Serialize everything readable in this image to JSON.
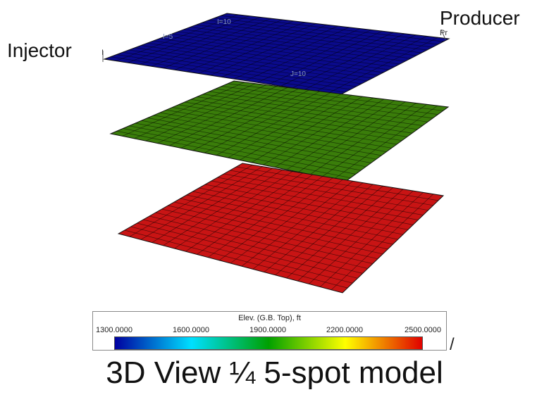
{
  "caption": "3D View ¼ 5-spot model",
  "wells": {
    "injector_label": "Injector",
    "producer_label": "Producer",
    "injector_tag": "I",
    "producer_tag": "Pr"
  },
  "grid_labels": [
    "I=10",
    "I=5",
    "J=10"
  ],
  "grid": {
    "cells_i": 20,
    "cells_j": 20
  },
  "layers": [
    {
      "name": "top",
      "color": "#0a0a8c"
    },
    {
      "name": "middle",
      "color": "#3a7d0a"
    },
    {
      "name": "bottom",
      "color": "#c81414"
    }
  ],
  "legend": {
    "title": "Elev. (G.B. Top), ft",
    "ticks": [
      "1300.0000",
      "1600.0000",
      "1900.0000",
      "2200.0000",
      "2500.0000"
    ],
    "min": 1300,
    "max": 2500,
    "colors": [
      "#0000a0",
      "#00e0ff",
      "#00a000",
      "#ffff00",
      "#e00000"
    ]
  }
}
